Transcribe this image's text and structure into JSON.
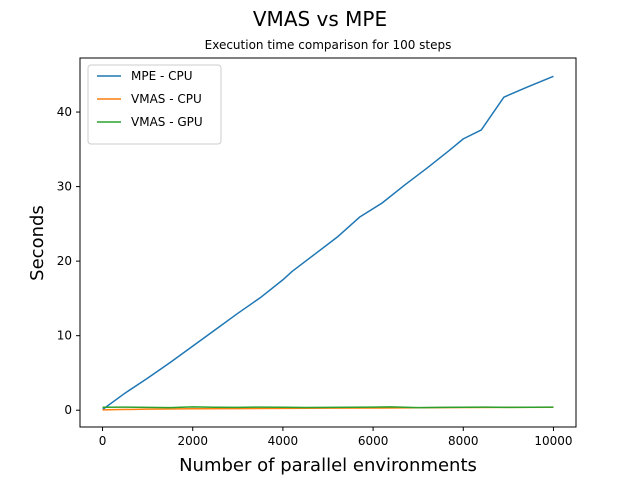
{
  "chart_data": {
    "type": "line",
    "title": "VMAS vs MPE",
    "subtitle": "Execution time comparison for 100 steps",
    "xlabel": "Number of parallel environments",
    "ylabel": "Seconds",
    "xlim": [
      -500,
      10500
    ],
    "ylim": [
      -2.25,
      47.25
    ],
    "xticks": [
      0,
      2000,
      4000,
      6000,
      8000,
      10000
    ],
    "xtick_labels": [
      "0",
      "2000",
      "4000",
      "6000",
      "8000",
      "10000"
    ],
    "yticks": [
      0,
      10,
      20,
      30,
      40
    ],
    "ytick_labels": [
      "0",
      "10",
      "20",
      "30",
      "40"
    ],
    "grid": false,
    "legend_position": "upper-left",
    "series": [
      {
        "name": "MPE - CPU",
        "color": "#1f77b4",
        "x": [
          1,
          500,
          1000,
          1500,
          2000,
          2500,
          3000,
          3500,
          4000,
          4200,
          4700,
          5200,
          5700,
          6200,
          6700,
          7200,
          7700,
          8000,
          8400,
          8900,
          9400,
          10000
        ],
        "y": [
          0.1,
          2.3,
          4.3,
          6.4,
          8.6,
          10.8,
          13.0,
          15.1,
          17.5,
          18.6,
          20.9,
          23.2,
          25.9,
          27.8,
          30.2,
          32.5,
          34.9,
          36.4,
          37.6,
          42.0,
          43.3,
          44.8
        ]
      },
      {
        "name": "VMAS - CPU",
        "color": "#ff7f0e",
        "x": [
          1,
          1000,
          2000,
          3000,
          4000,
          5000,
          6000,
          7000,
          8000,
          9000,
          10000
        ],
        "y": [
          0.05,
          0.15,
          0.2,
          0.22,
          0.25,
          0.28,
          0.3,
          0.33,
          0.36,
          0.38,
          0.4
        ]
      },
      {
        "name": "VMAS - GPU",
        "color": "#2ca02c",
        "x": [
          1,
          500,
          1000,
          1500,
          2000,
          2500,
          3000,
          3500,
          4000,
          4500,
          5000,
          5500,
          6000,
          6400,
          7000,
          7500,
          8000,
          8500,
          9000,
          9500,
          10000
        ],
        "y": [
          0.4,
          0.42,
          0.38,
          0.35,
          0.45,
          0.4,
          0.38,
          0.42,
          0.4,
          0.36,
          0.38,
          0.4,
          0.42,
          0.45,
          0.35,
          0.38,
          0.4,
          0.42,
          0.38,
          0.4,
          0.42
        ]
      }
    ]
  }
}
